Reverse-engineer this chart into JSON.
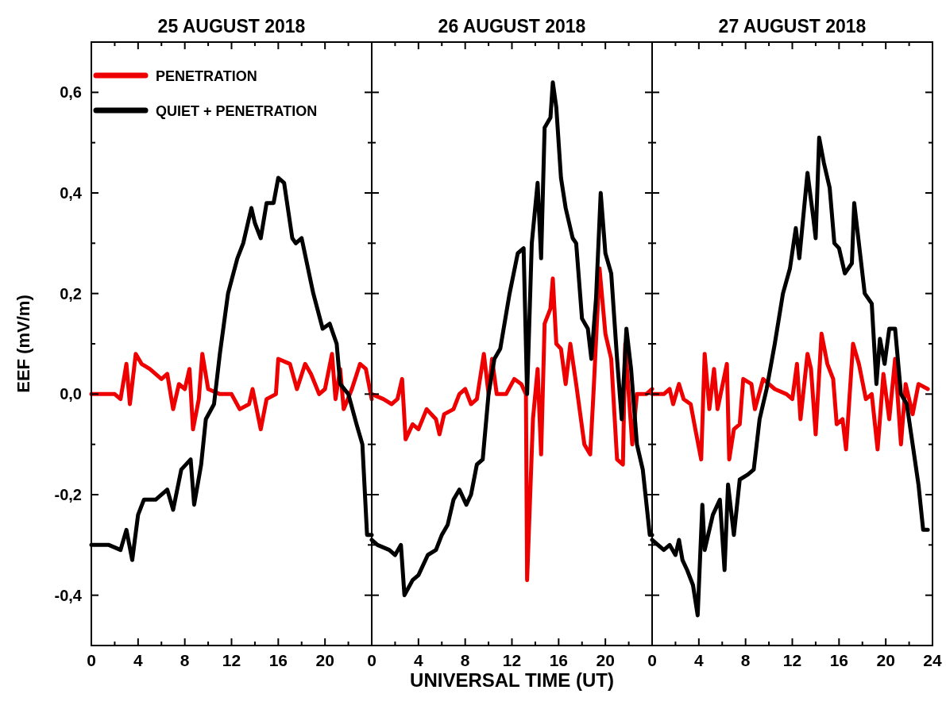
{
  "chart_data": [
    {
      "type": "line",
      "title": "25 AUGUST 2018",
      "ylabel": "EEF (mV/m)",
      "legend": "top left",
      "line_style": "solid",
      "marker": "none",
      "grid": false,
      "xlim": [
        0,
        24
      ],
      "xticks": [
        0,
        {
          "value": 2,
          "label": null
        },
        4,
        {
          "value": 6,
          "label": null
        },
        8,
        {
          "value": 10,
          "label": null
        },
        12,
        {
          "value": 14,
          "label": null
        },
        16,
        {
          "value": 18,
          "label": null
        },
        20,
        {
          "value": 22,
          "label": null
        },
        {
          "value": 24,
          "label": null
        }
      ],
      "ylim": [
        -0.5,
        0.7
      ],
      "yticks": [
        {
          "value": -0.4,
          "label": "-0,4"
        },
        {
          "value": -0.3,
          "label": null
        },
        {
          "value": -0.2,
          "label": "-0,2"
        },
        {
          "value": -0.1,
          "label": null
        },
        {
          "value": 0,
          "label": "0,0"
        },
        {
          "value": 0.1,
          "label": null
        },
        {
          "value": 0.2,
          "label": "0,2"
        },
        {
          "value": 0.3,
          "label": null
        },
        {
          "value": 0.4,
          "label": "0,4"
        },
        {
          "value": 0.5,
          "label": null
        },
        {
          "value": 0.6,
          "label": "0,6"
        }
      ],
      "series": [
        {
          "name": "PENETRATION",
          "color": "#ee0000",
          "x": [
            0,
            2,
            2.5,
            3,
            3.3,
            3.8,
            4.3,
            5,
            6,
            6.5,
            7,
            7.5,
            8,
            8.4,
            8.7,
            9.2,
            9.5,
            10,
            11,
            12,
            12.7,
            13.5,
            13.8,
            14.5,
            15,
            15.8,
            16,
            17,
            17.6,
            18.3,
            18.8,
            19.5,
            20,
            20.6,
            20.9,
            21.3,
            21.6,
            22.3,
            23,
            23.5,
            24
          ],
          "values": [
            0,
            0,
            -0.01,
            0.06,
            -0.02,
            0.08,
            0.06,
            0.05,
            0.03,
            0.04,
            -0.03,
            0.02,
            0.01,
            0.05,
            -0.07,
            -0.01,
            0.08,
            0.01,
            0,
            0,
            -0.03,
            -0.02,
            0.01,
            -0.07,
            -0.01,
            0,
            0.07,
            0.06,
            0.01,
            0.06,
            0.04,
            0,
            0.01,
            0.08,
            -0.01,
            0.05,
            -0.03,
            0.01,
            0.06,
            0.05,
            -0.01
          ]
        },
        {
          "name": "QUIET + PENETRATION",
          "color": "#000000",
          "x": [
            0,
            1.5,
            2.5,
            3,
            3.5,
            4,
            4.5,
            5.5,
            6.5,
            7,
            7.7,
            8.5,
            8.8,
            9.4,
            9.8,
            10.5,
            11,
            11.7,
            12.5,
            13,
            13.7,
            14,
            14.5,
            15,
            15.6,
            16,
            16.5,
            17.2,
            17.5,
            18,
            19,
            19.8,
            20.4,
            21,
            21.3,
            22,
            22.7,
            23.2,
            23.6,
            24
          ],
          "values": [
            -0.3,
            -0.3,
            -0.31,
            -0.27,
            -0.33,
            -0.24,
            -0.21,
            -0.21,
            -0.19,
            -0.23,
            -0.15,
            -0.13,
            -0.22,
            -0.14,
            -0.05,
            -0.02,
            0.08,
            0.2,
            0.27,
            0.3,
            0.37,
            0.34,
            0.31,
            0.38,
            0.38,
            0.43,
            0.42,
            0.31,
            0.3,
            0.31,
            0.2,
            0.13,
            0.14,
            0.1,
            0.02,
            0,
            -0.06,
            -0.1,
            -0.28,
            -0.28
          ]
        }
      ]
    },
    {
      "type": "line",
      "title": "26 AUGUST 2018",
      "xlabel": "UNIVERSAL TIME (UT)",
      "line_style": "solid",
      "marker": "none",
      "grid": false,
      "tick_labels": "x",
      "xlim": [
        0,
        24
      ],
      "xticks": [
        0,
        {
          "value": 2,
          "label": null
        },
        4,
        {
          "value": 6,
          "label": null
        },
        8,
        {
          "value": 10,
          "label": null
        },
        12,
        {
          "value": 14,
          "label": null
        },
        16,
        {
          "value": 18,
          "label": null
        },
        20,
        {
          "value": 22,
          "label": null
        },
        {
          "value": 24,
          "label": null
        }
      ],
      "ylim": [
        -0.5,
        0.7
      ],
      "yticks": [
        {
          "value": -0.4,
          "label": null
        },
        {
          "value": -0.3,
          "label": null
        },
        {
          "value": -0.2,
          "label": null
        },
        {
          "value": -0.1,
          "label": null
        },
        {
          "value": 0,
          "label": null
        },
        {
          "value": 0.1,
          "label": null
        },
        {
          "value": 0.2,
          "label": null
        },
        {
          "value": 0.3,
          "label": null
        },
        {
          "value": 0.4,
          "label": null
        },
        {
          "value": 0.5,
          "label": null
        },
        {
          "value": 0.6,
          "label": null
        }
      ],
      "series": [
        {
          "color": "#ee0000",
          "x": [
            0,
            1,
            1.7,
            2.2,
            2.6,
            2.9,
            3.5,
            4,
            4.7,
            5.5,
            5.8,
            6.2,
            7,
            7.5,
            8,
            8.5,
            9,
            9.6,
            10,
            10.3,
            10.7,
            11.5,
            12.2,
            12.8,
            13.2,
            13.3,
            13.8,
            14.2,
            14.5,
            14.8,
            15.3,
            15.5,
            15.8,
            16.2,
            16.6,
            17,
            17.5,
            18.2,
            18.7,
            19,
            19.5,
            20,
            20.5,
            21,
            21.5,
            21.7,
            22.3,
            22.7,
            23.5,
            24
          ],
          "values": [
            0,
            -0.01,
            -0.02,
            -0.01,
            0.03,
            -0.09,
            -0.06,
            -0.07,
            -0.03,
            -0.05,
            -0.08,
            -0.04,
            -0.03,
            0,
            0.01,
            -0.02,
            -0.01,
            0.08,
            0,
            0.07,
            0,
            0,
            0.03,
            0.02,
            0,
            -0.37,
            -0.05,
            0.05,
            -0.12,
            0.14,
            0.17,
            0.23,
            0.1,
            0.09,
            0.02,
            0.1,
            0.02,
            -0.1,
            -0.12,
            0.01,
            0.25,
            0.12,
            0.07,
            -0.13,
            -0.14,
            0.1,
            -0.1,
            0,
            0,
            0.01
          ]
        },
        {
          "color": "#000000",
          "x": [
            0,
            0.5,
            1.5,
            2,
            2.5,
            2.8,
            3.5,
            4,
            4.8,
            5.5,
            6,
            6.5,
            7,
            7.5,
            8.1,
            8.5,
            9,
            9.5,
            10,
            10.5,
            11,
            11.8,
            12.5,
            13,
            13.3,
            13.7,
            14.2,
            14.5,
            14.8,
            15.3,
            15.5,
            15.8,
            16.2,
            16.6,
            17.2,
            17.5,
            18,
            18.5,
            18.8,
            19.2,
            19.6,
            20,
            20.5,
            21,
            21.4,
            21.8,
            22.2,
            22.7,
            23.2,
            23.8,
            24
          ],
          "values": [
            -0.29,
            -0.3,
            -0.31,
            -0.32,
            -0.3,
            -0.4,
            -0.37,
            -0.36,
            -0.32,
            -0.31,
            -0.28,
            -0.26,
            -0.21,
            -0.19,
            -0.22,
            -0.2,
            -0.14,
            -0.13,
            0,
            0.07,
            0.09,
            0.2,
            0.28,
            0.29,
            0,
            0.3,
            0.42,
            0.27,
            0.53,
            0.55,
            0.62,
            0.57,
            0.43,
            0.37,
            0.31,
            0.3,
            0.15,
            0.13,
            0.07,
            0.19,
            0.4,
            0.28,
            0.24,
            0.07,
            -0.05,
            0.13,
            0.05,
            -0.1,
            -0.15,
            -0.28,
            -0.28
          ]
        }
      ]
    },
    {
      "type": "line",
      "title": "27 AUGUST 2018",
      "line_style": "solid",
      "marker": "none",
      "grid": false,
      "tick_labels": "x",
      "xlim": [
        0,
        24
      ],
      "xticks": [
        0,
        {
          "value": 2,
          "label": null
        },
        4,
        {
          "value": 6,
          "label": null
        },
        8,
        {
          "value": 10,
          "label": null
        },
        12,
        {
          "value": 14,
          "label": null
        },
        16,
        {
          "value": 18,
          "label": null
        },
        20,
        {
          "value": 22,
          "label": null
        },
        24
      ],
      "ylim": [
        -0.5,
        0.7
      ],
      "yticks": [
        {
          "value": -0.4,
          "label": null
        },
        {
          "value": -0.3,
          "label": null
        },
        {
          "value": -0.2,
          "label": null
        },
        {
          "value": -0.1,
          "label": null
        },
        {
          "value": 0,
          "label": null
        },
        {
          "value": 0.1,
          "label": null
        },
        {
          "value": 0.2,
          "label": null
        },
        {
          "value": 0.3,
          "label": null
        },
        {
          "value": 0.4,
          "label": null
        },
        {
          "value": 0.5,
          "label": null
        },
        {
          "value": 0.6,
          "label": null
        }
      ],
      "series": [
        {
          "color": "#ee0000",
          "x": [
            0,
            1,
            1.5,
            1.8,
            2.3,
            2.7,
            3.3,
            3.7,
            4.2,
            4.5,
            4.9,
            5.3,
            5.6,
            6.4,
            6.6,
            7,
            7.5,
            7.8,
            8.5,
            8.8,
            9.5,
            10.5,
            11.5,
            12,
            12.4,
            12.7,
            13.3,
            13.6,
            14,
            14.5,
            15,
            15.5,
            15.8,
            16.3,
            16.6,
            17.2,
            17.7,
            18.3,
            18.8,
            19.3,
            19.8,
            20.3,
            20.8,
            21.3,
            21.7,
            22.3,
            22.8,
            23.6
          ],
          "values": [
            0,
            0,
            0.01,
            -0.02,
            0.02,
            -0.01,
            -0.02,
            -0.07,
            -0.13,
            0.08,
            -0.03,
            0.05,
            -0.03,
            0.06,
            -0.13,
            -0.07,
            -0.06,
            0.03,
            0.02,
            -0.03,
            0.03,
            0.01,
            0,
            -0.01,
            0.06,
            -0.05,
            0.08,
            0.05,
            -0.08,
            0.12,
            0.06,
            0.03,
            -0.06,
            -0.05,
            -0.11,
            0.1,
            0.06,
            -0.01,
            0,
            -0.11,
            0.04,
            -0.05,
            0.07,
            -0.1,
            0.02,
            -0.04,
            0.02,
            0.01
          ]
        },
        {
          "color": "#000000",
          "x": [
            0,
            1,
            1.5,
            2,
            2.3,
            2.6,
            3,
            3.5,
            3.9,
            4.3,
            4.5,
            5.2,
            5.8,
            6.2,
            6.5,
            7,
            7.5,
            8.2,
            8.7,
            9.2,
            9.8,
            10.5,
            11.2,
            11.8,
            12.3,
            12.6,
            13.3,
            13.8,
            14,
            14.3,
            14.7,
            15.2,
            15.6,
            16,
            16.5,
            17.1,
            17.3,
            17.8,
            18.2,
            18.8,
            19.2,
            19.5,
            19.9,
            20.3,
            20.8,
            21.3,
            21.8,
            22.3,
            22.8,
            23.2,
            23.6
          ],
          "values": [
            -0.29,
            -0.31,
            -0.3,
            -0.32,
            -0.29,
            -0.33,
            -0.35,
            -0.38,
            -0.44,
            -0.22,
            -0.31,
            -0.24,
            -0.21,
            -0.35,
            -0.18,
            -0.28,
            -0.17,
            -0.16,
            -0.15,
            -0.05,
            0.01,
            0.1,
            0.2,
            0.25,
            0.33,
            0.27,
            0.44,
            0.35,
            0.31,
            0.51,
            0.46,
            0.41,
            0.3,
            0.29,
            0.24,
            0.26,
            0.38,
            0.28,
            0.2,
            0.18,
            0.02,
            0.11,
            0.06,
            0.13,
            0.13,
            0,
            -0.02,
            -0.1,
            -0.18,
            -0.27,
            -0.27
          ]
        }
      ]
    }
  ]
}
